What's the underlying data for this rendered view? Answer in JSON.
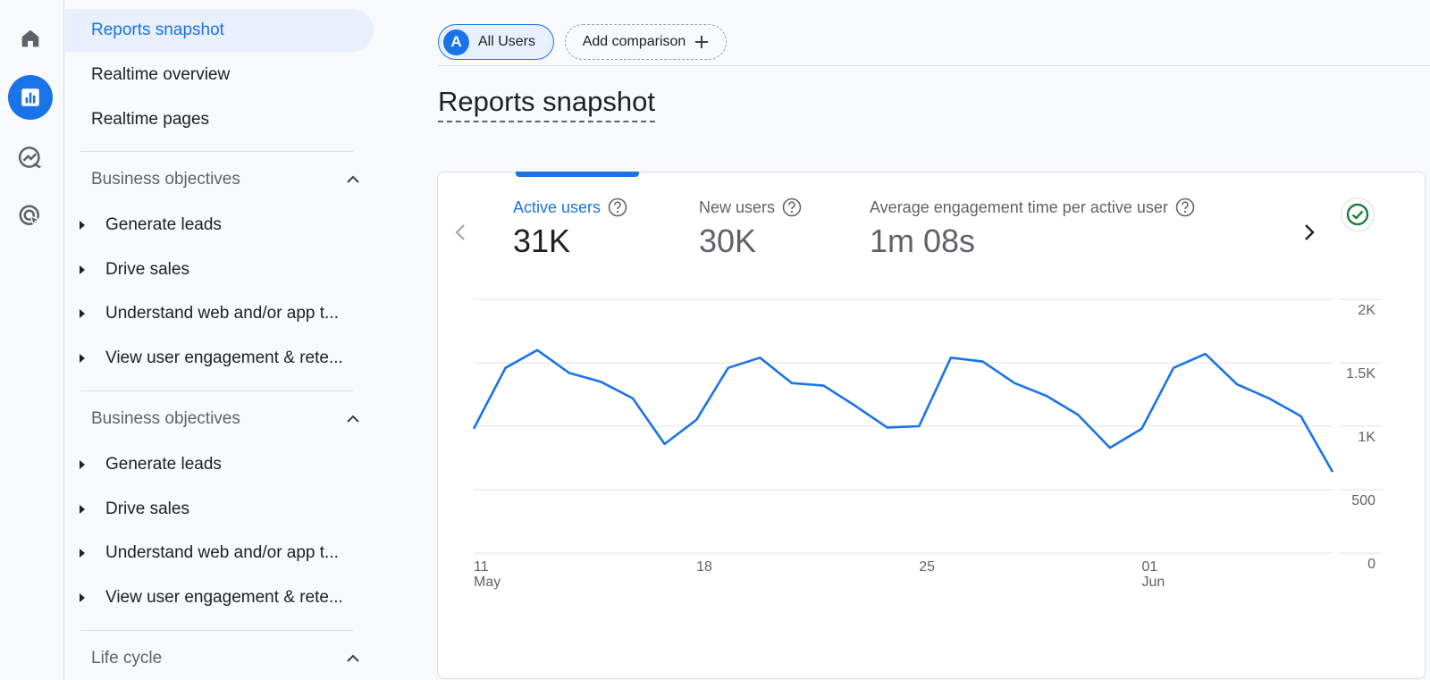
{
  "nav": {
    "items": [
      {
        "label": "Reports snapshot",
        "active": true
      },
      {
        "label": "Realtime overview"
      },
      {
        "label": "Realtime pages"
      }
    ],
    "sections": [
      {
        "title": "Business objectives",
        "items": [
          "Generate leads",
          "Drive sales",
          "Understand web and/or app t...",
          "View user engagement & rete..."
        ]
      },
      {
        "title": "Business objectives",
        "items": [
          "Generate leads",
          "Drive sales",
          "Understand web and/or app t...",
          "View user engagement & rete..."
        ]
      },
      {
        "title": "Life cycle",
        "items": []
      }
    ]
  },
  "rail": {
    "icons": [
      "home-icon",
      "reports-icon",
      "explore-icon",
      "advertising-icon"
    ]
  },
  "header": {
    "comparison_avatar": "A",
    "comparison_label": "All Users",
    "add_comparison_label": "Add comparison"
  },
  "page": {
    "title": "Reports snapshot"
  },
  "metrics": [
    {
      "label": "Active users",
      "value": "31K",
      "active": true
    },
    {
      "label": "New users",
      "value": "30K"
    },
    {
      "label": "Average engagement time per active user",
      "value": "1m 08s"
    }
  ],
  "colors": {
    "accent": "#1a73e8",
    "success": "#188038"
  },
  "chart_data": {
    "type": "line",
    "series": [
      {
        "values": [
          980,
          1460,
          1600,
          1420,
          1350,
          1220,
          860,
          1050,
          1460,
          1540,
          1340,
          1320,
          1160,
          990,
          1000,
          1540,
          1510,
          1340,
          1240,
          1090,
          830,
          980,
          1460,
          1570,
          1330,
          1220,
          1080,
          640
        ]
      }
    ],
    "x_tick_labels": [
      {
        "day": "11",
        "month": "May"
      },
      {
        "day": "18",
        "month": ""
      },
      {
        "day": "25",
        "month": ""
      },
      {
        "day": "01",
        "month": "Jun"
      }
    ],
    "y_tick_labels": [
      "2K",
      "1.5K",
      "1K",
      "500",
      "0"
    ],
    "ylim": [
      0,
      2000
    ],
    "grid": true
  }
}
